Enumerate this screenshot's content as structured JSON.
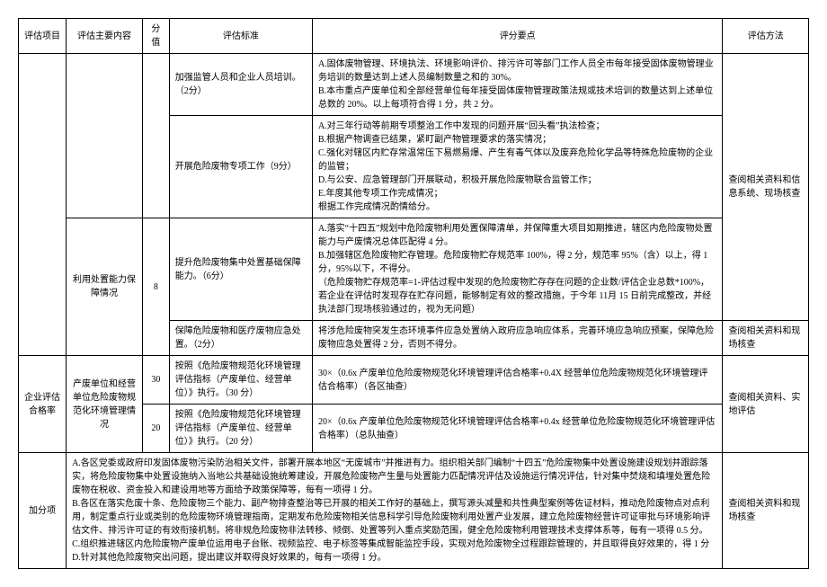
{
  "headers": {
    "project": "评估项目",
    "subject": "评估主要内容",
    "score": "分值",
    "standard": "评估标准",
    "points": "评分要点",
    "method": "评估方法"
  },
  "rows": {
    "r1": {
      "standard": "加强监管人员和企业人员培训。（2分）",
      "points": "A.固体废物管理、环境执法、环境影响评价、排污许可等部门工作人员全市每年接受固体废物管理业务培训的数量达到上述人员编制数量之和的 30%。\nB.本市重点产废单位和全部经营单位每年接受固体废物管理政策法规或技术培训的数量达到上述单位总数的 20%。以上每项符合得 1 分，共 2 分。"
    },
    "r2": {
      "standard": "开展危险废物专项工作（9分）",
      "points": "A.对三年行动等前期专项整治工作中发现的问题开展“回头看”执法检查；\nB.根据产物调查已结果，紧盯副产物管理要求的落实情况；\nC.强化对辖区内贮存常温常压下易燃易爆、产生有毒气体以及废弃危险化学品等特殊危险废物的企业的监管；\nD.与公安、应急管理部门开展联动，积极开展危险废物联合监管工作；\nE.年度其他专项工作完成情况；\n根据工作完成情况酌情给分。"
    },
    "r3": {
      "subject": "利用处置能力保障情况",
      "score": "8",
      "standard": "提升危险废物集中处置基础保障能力。（6分）",
      "points": "A.落实“十四五”规划中危险废物利用处置保障清单，并保障重大项目如期推进，辖区内危险废物处置能力与产废情况总体匹配得 4 分。\nB.加强辖区危险废物贮存管理。危险废物贮存规范率 100%，得 2 分，规范率 95%（含）以上，得 1 分，95%以下，不得分。\n（危险废物贮存规范率=1-评估过程中发现的危险废物贮存存在问题的企业数/评估企业总数*100%，若企业在评估时发现存在贮存问题，能够制定有效的整改措施，于今年 11月 15 日前完成整改，并经执法部门现场核验通过的，视为无问题）",
      "method": "查阅相关资料和信息系统、现场核查"
    },
    "r4": {
      "standard": "保障危险废物和医疗废物应急处置。（2分）",
      "points": "将涉危险废物突发生态环境事件应急处置纳入政府应急响应体系，完善环境应急响应预案，保障危险废物应急处置得 2 分，否则不得分。",
      "method": "查阅相关资料和现场核查"
    },
    "r5": {
      "project": "企业评估合格率",
      "subject": "产废单位和经营单位危险废物规范化环境管理情况",
      "score1": "30",
      "standard1": "按照《危险废物规范化环境管理评估指标（产废单位、经营单位）》执行。（30 分）",
      "points1": "30×（0.6x 产废单位危险废物规范化环境管理评估合格率+0.4X 经营单位危险废物规范化环境管理评估合格率）（各区抽查）",
      "score2": "20",
      "standard2": "按照《危险废物规范化环境管理评估指标（产废单位、经营单位）》执行。（20 分）",
      "points2": "20×（0.6x 产废单位危险废物规范化环境管理评估合格率+0.4x 经营单位危险废物规范化环境管理评估合格率）（总队抽查）",
      "method": "查阅相关资料、实地评估"
    },
    "bonus": {
      "label": "加分项",
      "text": "A.各区党委或政府印发固体废物污染防治相关文件，部署开展本地区“无废城市”并推进有力。组织相关部门编制“十四五”危险废物集中处置设施建设规划并跟踪落实，将危险废物集中处置设施纳入当地公共基础设施统筹建设，开展危险废物产生量与处置能力匹配情况评估及设施运行情况评估，针对集中焚烧和填埋处置危险废物在税收、资金投入和建设用地等方面给予政策保障等，每有一项得 1 分。\nB.各区在落实危废十条、危险废物三个能力、副产物排查整治等已开展的相关工作好的基础上，撰写源头减量和共性典型案例等佐证材料，推动危险废物点对点利用，制定重点行业或类别的危险废物环境管理指南，定期发布危险废物相关信息科学引导危险废物利用处置产业发展，建立危险废物经营许可证审批与环境影响评估文件、排污许可证的有效衔接机制，将非规危险废物非法转移、倾倒、处置等列入重点奖励范围，健全危险废物利用管理技术支撑体系等，每有一项得 0.5 分。\nC.组织推进辖区内危险废物产废单位运用电子台账、视频监控、电子标签等集成智能监控手段，实现对危险废物全过程跟踪管理的，并且取得良好效果的，得 1 分\nD.针对其他危险废物突出问题，提出建议并取得良好效果的，每有一项得 1 分。",
      "method": "查阅相关资料和现场核查"
    }
  }
}
